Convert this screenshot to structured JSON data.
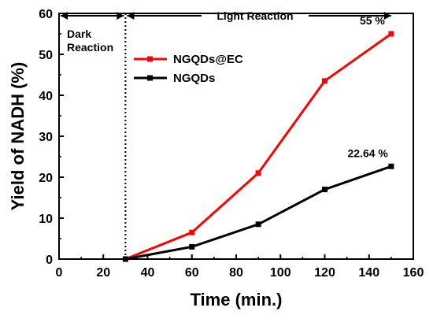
{
  "chart_data": {
    "type": "line",
    "xlabel": "Time (min.)",
    "ylabel": "Yield of NADH (%)",
    "xlim": [
      0,
      160
    ],
    "ylim": [
      0,
      60
    ],
    "x_ticks": [
      0,
      20,
      40,
      60,
      80,
      100,
      120,
      140,
      160
    ],
    "y_ticks": [
      0,
      10,
      20,
      30,
      40,
      50,
      60
    ],
    "grid": false,
    "legend_position": "upper-left-inside",
    "series": [
      {
        "name": "NGQDs@EC",
        "color": "#ff0000",
        "x": [
          30,
          60,
          90,
          120,
          150
        ],
        "y": [
          0,
          6.5,
          21,
          43.5,
          55
        ]
      },
      {
        "name": "NGQDs",
        "color": "#000000",
        "x": [
          30,
          60,
          90,
          120,
          150
        ],
        "y": [
          0,
          3,
          8.5,
          17,
          22.64
        ]
      }
    ],
    "annotations": {
      "dark_line1": "Dark",
      "dark_line2": "Reaction",
      "light": "Light Reaction",
      "label_ec_end": "55 %",
      "label_ngqds_end": "22.64 %"
    },
    "regions": {
      "dark_light_boundary_x": 30
    }
  }
}
